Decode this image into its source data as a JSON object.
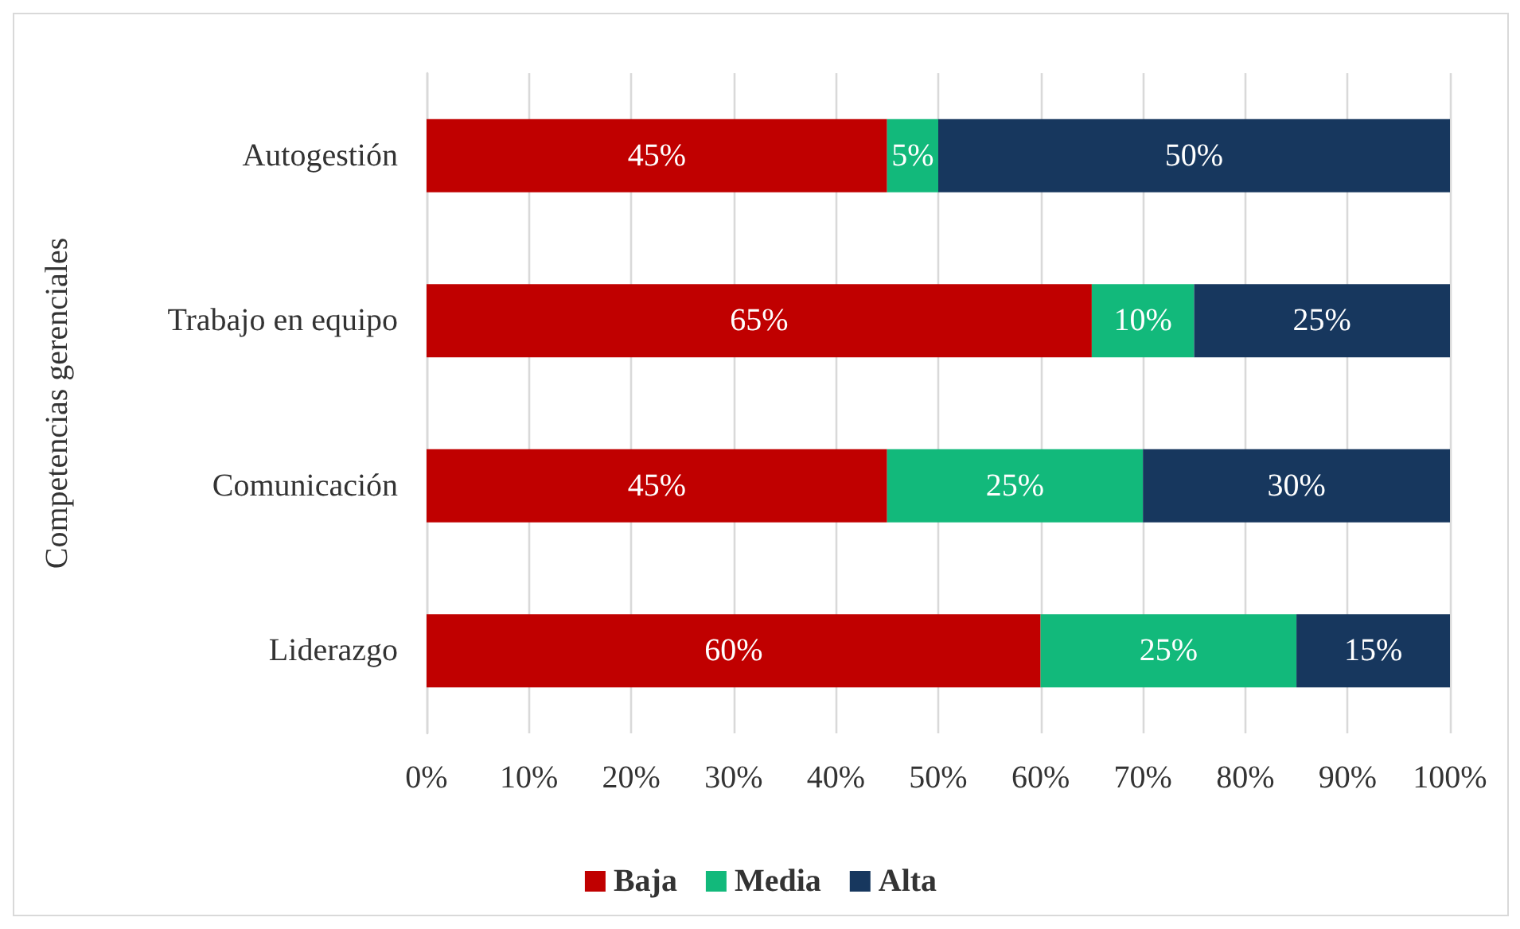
{
  "chart_data": {
    "type": "bar",
    "orientation": "horizontal",
    "stacked": true,
    "ylabel": "Competencias gerenciales",
    "categories": [
      "Autogestión",
      "Trabajo en equipo",
      "Comunicación",
      "Liderazgo"
    ],
    "series": [
      {
        "name": "Baja",
        "color": "#c00000",
        "values": [
          45,
          65,
          45,
          60
        ],
        "value_labels": [
          "45%",
          "65%",
          "45%",
          "60%"
        ]
      },
      {
        "name": "Media",
        "color": "#12b97b",
        "values": [
          5,
          10,
          25,
          25
        ],
        "value_labels": [
          "5%",
          "10%",
          "25%",
          "25%"
        ]
      },
      {
        "name": "Alta",
        "color": "#17375e",
        "values": [
          50,
          25,
          30,
          15
        ],
        "value_labels": [
          "50%",
          "25%",
          "30%",
          "15%"
        ]
      }
    ],
    "xlim": [
      0,
      100
    ],
    "xticks": [
      {
        "value": 0,
        "label": "0%"
      },
      {
        "value": 10,
        "label": "10%"
      },
      {
        "value": 20,
        "label": "20%"
      },
      {
        "value": 30,
        "label": "30%"
      },
      {
        "value": 40,
        "label": "40%"
      },
      {
        "value": 50,
        "label": "50%"
      },
      {
        "value": 60,
        "label": "60%"
      },
      {
        "value": 70,
        "label": "70%"
      },
      {
        "value": 80,
        "label": "80%"
      },
      {
        "value": 90,
        "label": "90%"
      },
      {
        "value": 100,
        "label": "100%"
      }
    ],
    "grid": "x",
    "legend": "bottom"
  }
}
